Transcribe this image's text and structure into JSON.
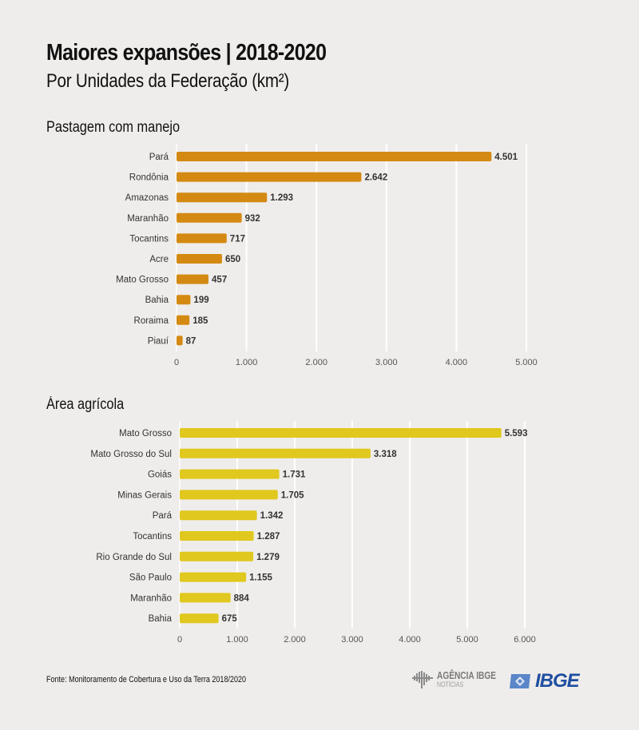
{
  "header": {
    "title": "Maiores expansões | 2018-2020",
    "subtitle": "Por Unidades da Federação (km²)"
  },
  "colors": {
    "pastagem_bar": "#d48a12",
    "agricola_bar": "#e0c81e",
    "background": "#efedeb",
    "gridline": "#ffffff",
    "ibge_blue": "#1f4fa0"
  },
  "chart_data": [
    {
      "type": "bar",
      "orientation": "horizontal",
      "title": "Pastagem com manejo",
      "xlabel": "",
      "ylabel": "",
      "categories": [
        "Pará",
        "Rondônia",
        "Amazonas",
        "Maranhão",
        "Tocantins",
        "Acre",
        "Mato Grosso",
        "Bahia",
        "Roraima",
        "Piauí"
      ],
      "values": [
        4501,
        2642,
        1293,
        932,
        717,
        650,
        457,
        199,
        185,
        87
      ],
      "value_labels": [
        "4.501",
        "2.642",
        "1.293",
        "932",
        "717",
        "650",
        "457",
        "199",
        "185",
        "87"
      ],
      "xlim": [
        0,
        5000
      ],
      "xticks": [
        0,
        1000,
        2000,
        3000,
        4000,
        5000
      ],
      "xtick_labels": [
        "0",
        "1.000",
        "2.000",
        "3.000",
        "4.000",
        "5.000"
      ],
      "grid": true,
      "color": "#d48a12"
    },
    {
      "type": "bar",
      "orientation": "horizontal",
      "title": "Área agrícola",
      "xlabel": "",
      "ylabel": "",
      "categories": [
        "Mato Grosso",
        "Mato Grosso do Sul",
        "Goiás",
        "Minas Gerais",
        "Pará",
        "Tocantins",
        "Rio Grande do Sul",
        "São Paulo",
        "Maranhão",
        "Bahia"
      ],
      "values": [
        5593,
        3318,
        1731,
        1705,
        1342,
        1287,
        1279,
        1155,
        884,
        675
      ],
      "value_labels": [
        "5.593",
        "3.318",
        "1.731",
        "1.705",
        "1.342",
        "1.287",
        "1.279",
        "1.155",
        "884",
        "675"
      ],
      "xlim": [
        0,
        6000
      ],
      "xticks": [
        0,
        1000,
        2000,
        3000,
        4000,
        5000,
        6000
      ],
      "xtick_labels": [
        "0",
        "1.000",
        "2.000",
        "3.000",
        "4.000",
        "5.000",
        "6.000"
      ],
      "grid": true,
      "color": "#e0c81e"
    }
  ],
  "footer": {
    "source": "Fonte:  Monitoramento de Cobertura e Uso da Terra 2018/2020",
    "agencia_logo_main": "AGÊNCIA IBGE",
    "agencia_logo_sub": "NOTÍCIAS",
    "ibge_logo": "IBGE"
  }
}
